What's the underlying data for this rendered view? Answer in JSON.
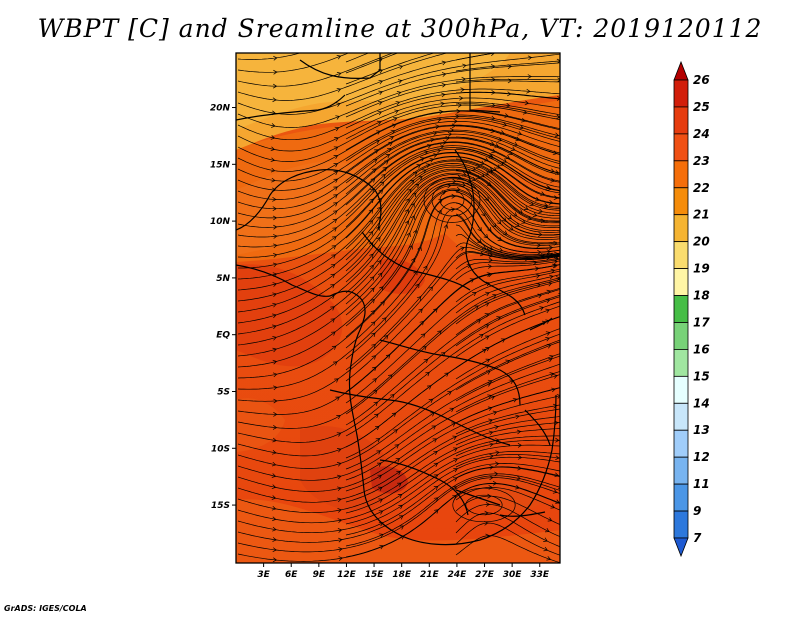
{
  "title": "WBPT [C] and Sreamline at 300hPa, VT: 2019120112",
  "footer": "GrADS: IGES/COLA",
  "lat_labels": [
    "20N",
    "15N",
    "10N",
    "5N",
    "EQ",
    "5S",
    "10S",
    "15S"
  ],
  "lat_values": [
    20,
    15,
    10,
    5,
    0,
    -5,
    -10,
    -15
  ],
  "lon_labels": [
    "3E",
    "6E",
    "9E",
    "12E",
    "15E",
    "18E",
    "21E",
    "24E",
    "27E",
    "30E",
    "33E"
  ],
  "lon_values": [
    3,
    6,
    9,
    12,
    15,
    18,
    21,
    24,
    27,
    30,
    33
  ],
  "colorbar": {
    "labels": [
      "26",
      "25",
      "24",
      "23",
      "22",
      "21",
      "20",
      "19",
      "18",
      "17",
      "16",
      "15",
      "14",
      "13",
      "12",
      "11",
      "9",
      "7"
    ],
    "colors": [
      "#b40000",
      "#d21e0a",
      "#e63c0f",
      "#f05014",
      "#f56e0a",
      "#f58c0a",
      "#f5b432",
      "#fadc6e",
      "#fff5a5",
      "#46be46",
      "#78d278",
      "#a0e6a0",
      "#e6ffff",
      "#c8e6fa",
      "#a0cdfa",
      "#78b4f0",
      "#4b96e6",
      "#2d78dc",
      "#1e5ad2"
    ]
  }
}
